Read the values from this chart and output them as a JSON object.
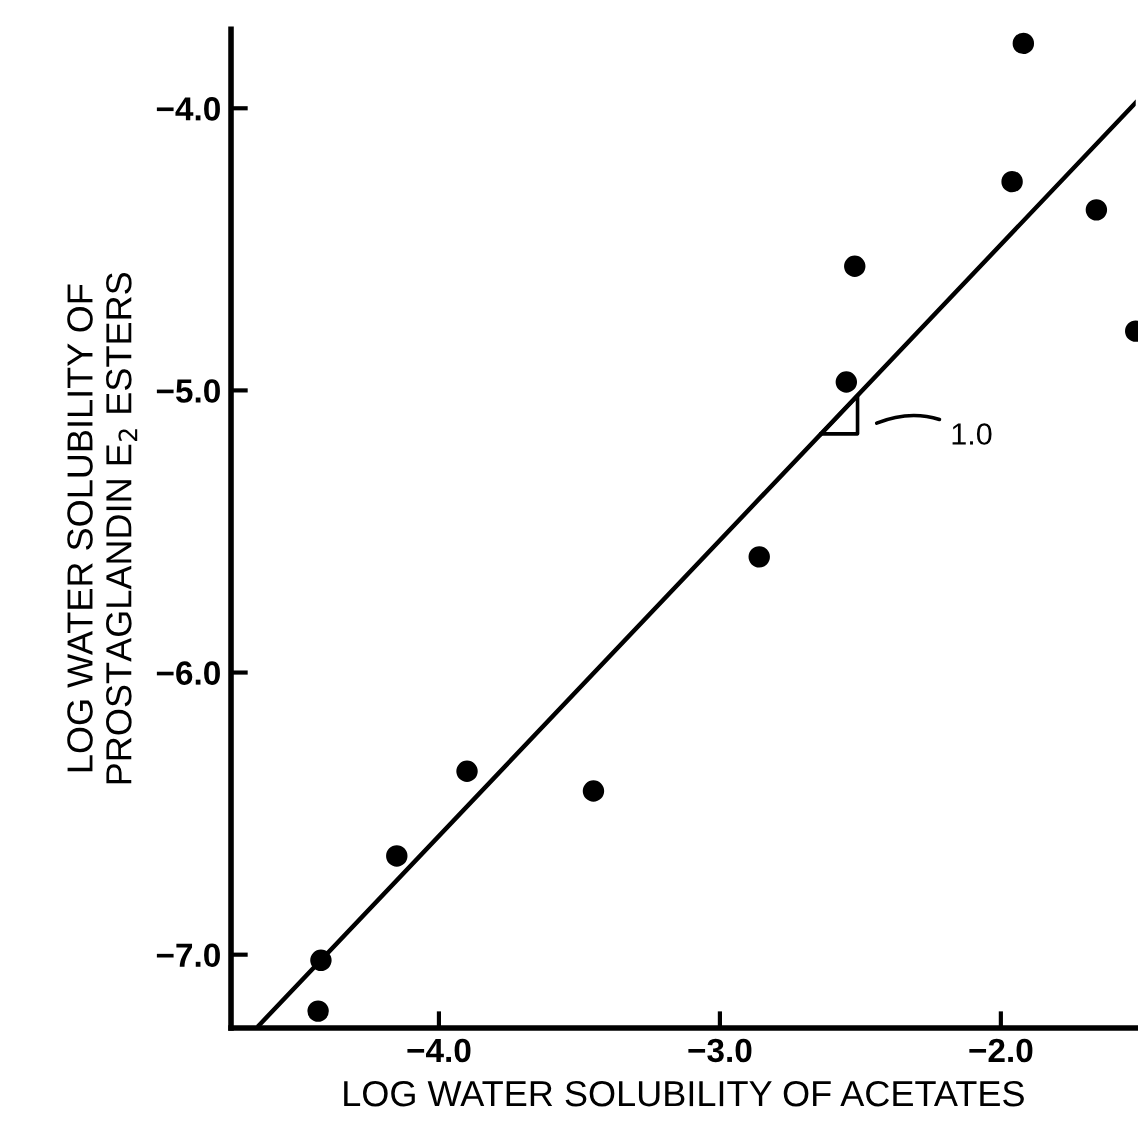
{
  "chart_data": {
    "type": "scatter",
    "xlabel": "LOG WATER SOLUBILITY OF ACETATES",
    "ylabel": "LOG WATER SOLUBILITY OF\nPROSTAGLANDIN E$_{2}$ ESTERS",
    "x": [
      -1.92,
      -1.96,
      -1.66,
      -1.52,
      -2.52,
      -2.55,
      -2.86,
      -3.9,
      -3.45,
      -4.15,
      -4.42,
      -4.43
    ],
    "series": [
      {
        "color": "#000000",
        "values": [
          -3.77,
          -4.26,
          -4.36,
          -4.79,
          -4.56,
          -4.97,
          -5.59,
          -6.35,
          -6.42,
          -6.65,
          -7.02,
          -7.2
        ]
      },
      {
        "type": "line",
        "color": "#000000",
        "x": [
          -4.64,
          -1.52
        ],
        "values": [
          -7.25,
          -3.98
        ],
        "marker": "none"
      }
    ],
    "marker": "circle",
    "xlim": [
      -4.74,
      -1.52
    ],
    "ylim": [
      -7.26,
      -3.72
    ],
    "xticks": [
      {
        "value": -4,
        "label": "−4.0"
      },
      {
        "value": -3,
        "label": "−3.0"
      },
      {
        "value": -2,
        "label": "−2.0"
      }
    ],
    "yticks": [
      {
        "value": -7,
        "label": "−7.0"
      },
      {
        "value": -6,
        "label": "−6.0"
      },
      {
        "value": -5,
        "label": "−5.0"
      },
      {
        "value": -4,
        "label": "−4.0"
      }
    ],
    "annotations": [
      "1.0"
    ],
    "grid": false,
    "legend": false
  }
}
